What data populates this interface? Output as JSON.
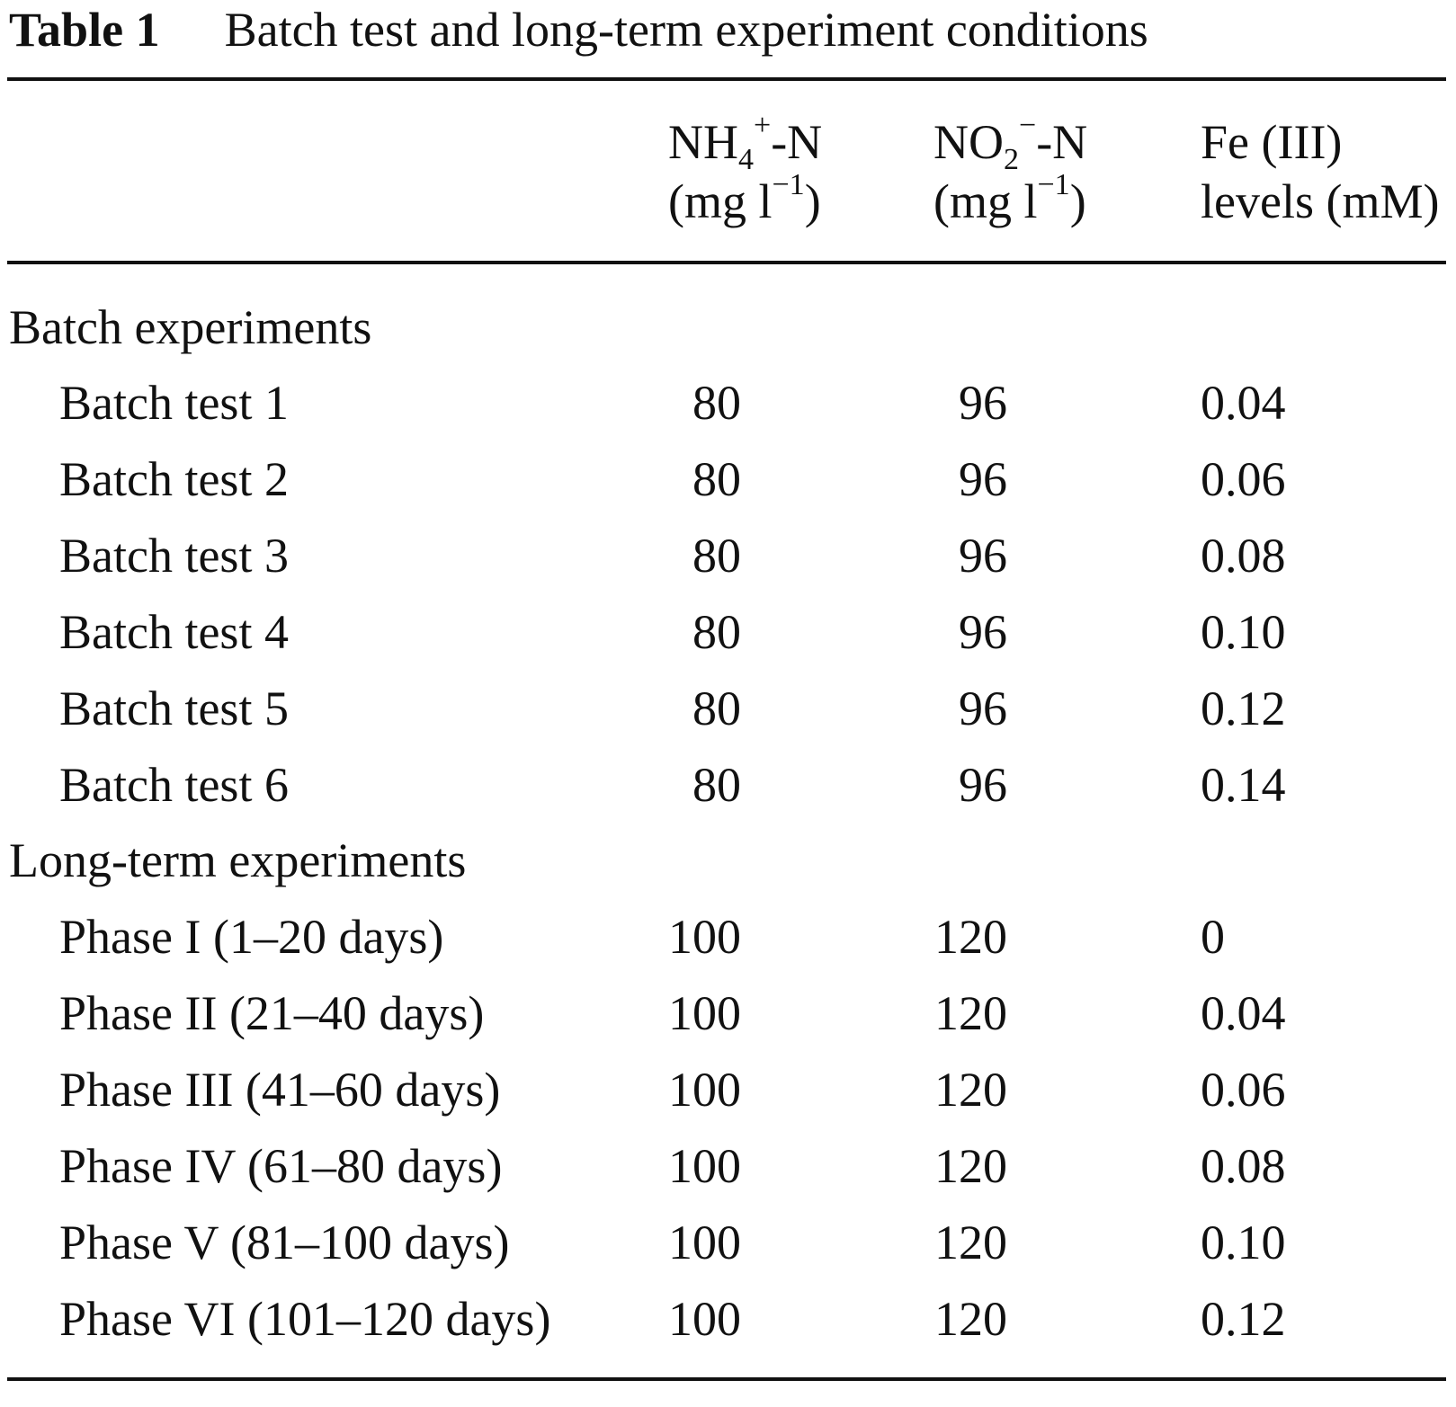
{
  "table": {
    "label": "Table 1",
    "title": "Batch test and long-term experiment conditions",
    "columns": [
      {
        "base": "NH",
        "sub": "4",
        "sup": "+",
        "suffix": "-N",
        "unit_pre": "(mg l",
        "unit_sup": "−1",
        "unit_post": ")"
      },
      {
        "base": "NO",
        "sub": "2",
        "sup": "−",
        "suffix": "-N",
        "unit_pre": "(mg l",
        "unit_sup": "−1",
        "unit_post": ")"
      },
      {
        "line1": "Fe (III)",
        "line2": "levels (mM)"
      }
    ],
    "sections": [
      {
        "heading": "Batch experiments",
        "rows": [
          {
            "name": "Batch test 1",
            "nh4": "80",
            "no2": "96",
            "fe": "0.04"
          },
          {
            "name": "Batch test 2",
            "nh4": "80",
            "no2": "96",
            "fe": "0.06"
          },
          {
            "name": "Batch test 3",
            "nh4": "80",
            "no2": "96",
            "fe": "0.08"
          },
          {
            "name": "Batch test 4",
            "nh4": "80",
            "no2": "96",
            "fe": "0.10"
          },
          {
            "name": "Batch test 5",
            "nh4": "80",
            "no2": "96",
            "fe": "0.12"
          },
          {
            "name": "Batch test 6",
            "nh4": "80",
            "no2": "96",
            "fe": "0.14"
          }
        ]
      },
      {
        "heading": "Long-term experiments",
        "rows": [
          {
            "name": "Phase I (1–20 days)",
            "nh4": "100",
            "no2": "120",
            "fe": "0"
          },
          {
            "name": "Phase II (21–40 days)",
            "nh4": "100",
            "no2": "120",
            "fe": "0.04"
          },
          {
            "name": "Phase III (41–60 days)",
            "nh4": "100",
            "no2": "120",
            "fe": "0.06"
          },
          {
            "name": "Phase IV (61–80 days)",
            "nh4": "100",
            "no2": "120",
            "fe": "0.08"
          },
          {
            "name": "Phase V (81–100 days)",
            "nh4": "100",
            "no2": "120",
            "fe": "0.10"
          },
          {
            "name": "Phase VI (101–120 days)",
            "nh4": "100",
            "no2": "120",
            "fe": "0.12"
          }
        ]
      }
    ]
  }
}
